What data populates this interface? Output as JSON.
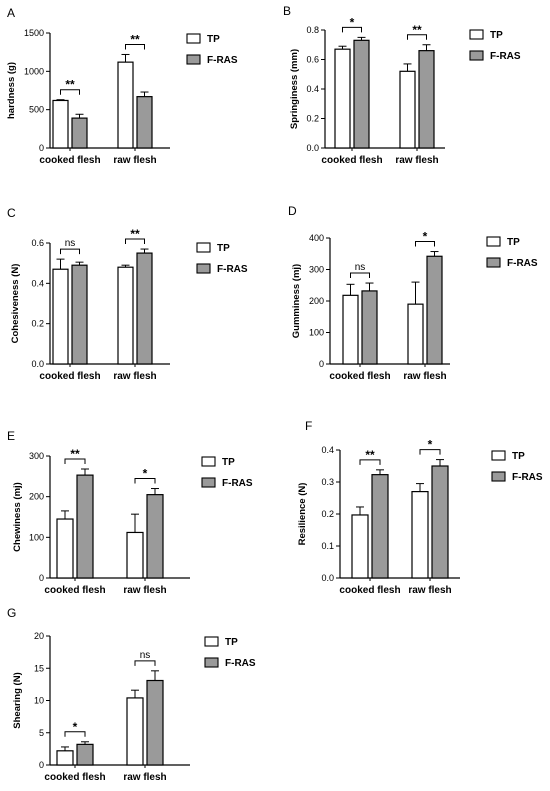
{
  "legend": [
    {
      "name": "TP",
      "color": "#ffffff"
    },
    {
      "name": "F-RAS",
      "color": "#9a9a9a"
    }
  ],
  "chart_data": [
    {
      "panel": "A",
      "type": "bar",
      "categories": [
        "cooked flesh",
        "raw flesh"
      ],
      "ylabel": "hardness (g)",
      "ylim": [
        0,
        1500
      ],
      "yticks": [
        "0",
        "500",
        "1000",
        "1500"
      ],
      "ytick_values": [
        0,
        500,
        1000,
        1500
      ],
      "series": [
        {
          "name": "TP",
          "values": [
            620,
            1120
          ],
          "errors": [
            10,
            100
          ]
        },
        {
          "name": "F-RAS",
          "values": [
            390,
            670
          ],
          "errors": [
            50,
            60
          ]
        }
      ],
      "significance": [
        "**",
        "**"
      ]
    },
    {
      "panel": "B",
      "type": "bar",
      "categories": [
        "cooked flesh",
        "raw flesh"
      ],
      "ylabel": "Springiness (mm)",
      "ylim": [
        0,
        0.8
      ],
      "yticks": [
        "0.0",
        "0.2",
        "0.4",
        "0.6",
        "0.8"
      ],
      "ytick_values": [
        0,
        0.2,
        0.4,
        0.6,
        0.8
      ],
      "series": [
        {
          "name": "TP",
          "values": [
            0.67,
            0.52
          ],
          "errors": [
            0.02,
            0.05
          ]
        },
        {
          "name": "F-RAS",
          "values": [
            0.73,
            0.66
          ],
          "errors": [
            0.02,
            0.04
          ]
        }
      ],
      "significance": [
        "*",
        "**"
      ]
    },
    {
      "panel": "C",
      "type": "bar",
      "categories": [
        "cooked flesh",
        "raw flesh"
      ],
      "ylabel": "Cohesiveness (N)",
      "ylim": [
        0,
        0.6
      ],
      "yticks": [
        "0.0",
        "0.2",
        "0.4",
        "0.6"
      ],
      "ytick_values": [
        0,
        0.2,
        0.4,
        0.6
      ],
      "series": [
        {
          "name": "TP",
          "values": [
            0.47,
            0.48
          ],
          "errors": [
            0.05,
            0.01
          ]
        },
        {
          "name": "F-RAS",
          "values": [
            0.49,
            0.55
          ],
          "errors": [
            0.015,
            0.02
          ]
        }
      ],
      "significance": [
        "ns",
        "**"
      ]
    },
    {
      "panel": "D",
      "type": "bar",
      "categories": [
        "cooked flesh",
        "raw flesh"
      ],
      "ylabel": "Gumminess (mj)",
      "ylim": [
        0,
        400
      ],
      "yticks": [
        "0",
        "100",
        "200",
        "300",
        "400"
      ],
      "ytick_values": [
        0,
        100,
        200,
        300,
        400
      ],
      "series": [
        {
          "name": "TP",
          "values": [
            218,
            190
          ],
          "errors": [
            35,
            70
          ]
        },
        {
          "name": "F-RAS",
          "values": [
            232,
            342
          ],
          "errors": [
            25,
            15
          ]
        }
      ],
      "significance": [
        "ns",
        "*"
      ]
    },
    {
      "panel": "E",
      "type": "bar",
      "categories": [
        "cooked flesh",
        "raw flesh"
      ],
      "ylabel": "Chewiness (mj)",
      "ylim": [
        0,
        300
      ],
      "yticks": [
        "0",
        "100",
        "200",
        "300"
      ],
      "ytick_values": [
        0,
        100,
        200,
        300
      ],
      "series": [
        {
          "name": "TP",
          "values": [
            145,
            112
          ],
          "errors": [
            20,
            45
          ]
        },
        {
          "name": "F-RAS",
          "values": [
            253,
            205
          ],
          "errors": [
            15,
            15
          ]
        }
      ],
      "significance": [
        "**",
        "*"
      ]
    },
    {
      "panel": "F",
      "type": "bar",
      "categories": [
        "cooked flesh",
        "raw flesh"
      ],
      "ylabel": "Resilience (N)",
      "ylim": [
        0,
        0.4
      ],
      "yticks": [
        "0.0",
        "0.1",
        "0.2",
        "0.3",
        "0.4"
      ],
      "ytick_values": [
        0,
        0.1,
        0.2,
        0.3,
        0.4
      ],
      "series": [
        {
          "name": "TP",
          "values": [
            0.197,
            0.27
          ],
          "errors": [
            0.025,
            0.025
          ]
        },
        {
          "name": "F-RAS",
          "values": [
            0.323,
            0.35
          ],
          "errors": [
            0.015,
            0.02
          ]
        }
      ],
      "significance": [
        "**",
        "*"
      ]
    },
    {
      "panel": "G",
      "type": "bar",
      "categories": [
        "cooked flesh",
        "raw flesh"
      ],
      "ylabel": "Shearing (N)",
      "ylim": [
        0,
        20
      ],
      "yticks": [
        "0",
        "5",
        "10",
        "15",
        "20"
      ],
      "ytick_values": [
        0,
        5,
        10,
        15,
        20
      ],
      "series": [
        {
          "name": "TP",
          "values": [
            2.2,
            10.4
          ],
          "errors": [
            0.6,
            1.2
          ]
        },
        {
          "name": "F-RAS",
          "values": [
            3.2,
            13.1
          ],
          "errors": [
            0.4,
            1.5
          ]
        }
      ],
      "significance": [
        "*",
        "ns"
      ]
    }
  ]
}
